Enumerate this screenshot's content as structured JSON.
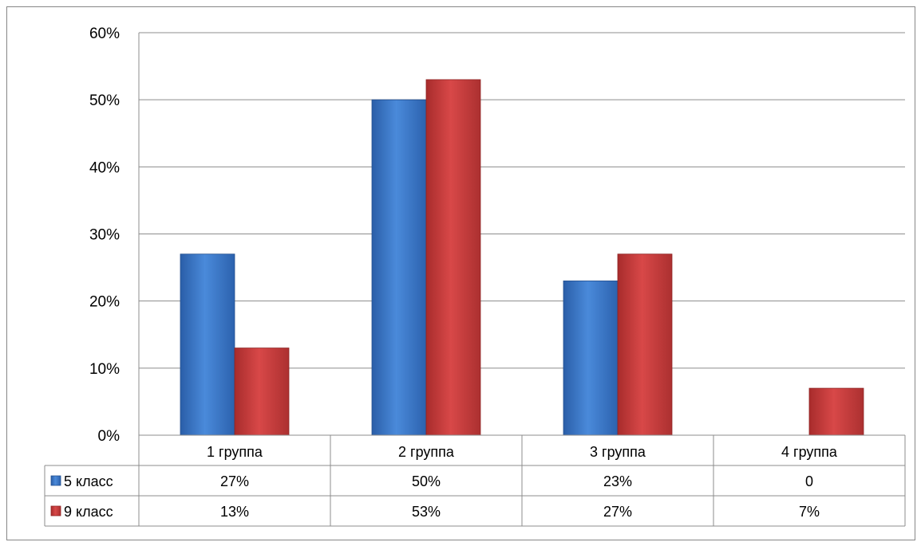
{
  "chart_data": {
    "type": "bar",
    "title": "",
    "xlabel": "",
    "ylabel": "",
    "categories": [
      "1 группа",
      "2 группа",
      "3 группа",
      "4 группа"
    ],
    "ylim": [
      0,
      60
    ],
    "yticks": [
      0,
      10,
      20,
      30,
      40,
      50,
      60
    ],
    "ytick_labels": [
      "0%",
      "10%",
      "20%",
      "30%",
      "40%",
      "50%",
      "60%"
    ],
    "grid": true,
    "legend": "data-table-left",
    "series": [
      {
        "name": "5 класс",
        "color": "#3C78C8",
        "values": [
          27,
          50,
          23,
          0
        ],
        "table_labels": [
          "27%",
          "50%",
          "23%",
          "0"
        ]
      },
      {
        "name": "9 класс",
        "color": "#C83C3C",
        "values": [
          13,
          53,
          27,
          7
        ],
        "table_labels": [
          "13%",
          "53%",
          "27%",
          "7%"
        ]
      }
    ]
  }
}
